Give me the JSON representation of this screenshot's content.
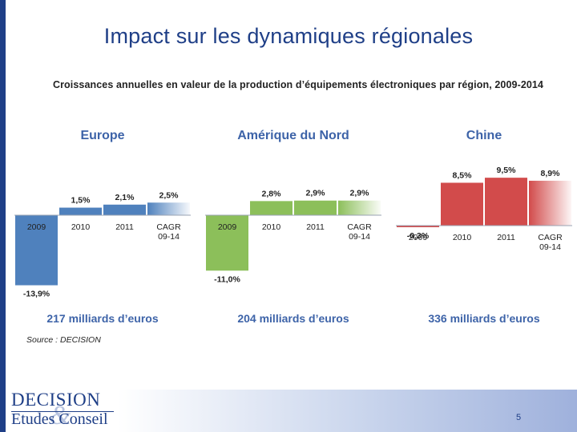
{
  "slide": {
    "title": "Impact sur les dynamiques régionales",
    "subtitle": "Croissances annuelles en valeur de la production d’équipements électroniques par région, 2009-2014",
    "source": "Source : DECISION",
    "page_number": "5",
    "logo": {
      "line1": "DECISION",
      "amp": "&",
      "line2": "Etudes Conseil"
    }
  },
  "chart_data": [
    {
      "type": "bar",
      "title": "Europe",
      "categories": [
        "2009",
        "2010",
        "2011",
        "CAGR\n09-14"
      ],
      "values": [
        -13.9,
        1.5,
        2.1,
        2.5
      ],
      "value_labels": [
        "-13,9%",
        "1,5%",
        "2,1%",
        "2,5%"
      ],
      "footer": "217 milliards d’euros",
      "color": "#4f81bd",
      "title_color": "#3d63a8"
    },
    {
      "type": "bar",
      "title": "Amérique du Nord",
      "categories": [
        "2009",
        "2010",
        "2011",
        "CAGR\n09-14"
      ],
      "values": [
        -11.0,
        2.8,
        2.9,
        2.9
      ],
      "value_labels": [
        "-11,0%",
        "2,8%",
        "2,9%",
        "2,9%"
      ],
      "footer": "204 milliards d’euros",
      "color": "#8cbf5a",
      "title_color": "#3d63a8"
    },
    {
      "type": "bar",
      "title": "Chine",
      "categories": [
        "2009",
        "2010",
        "2011",
        "CAGR\n09-14"
      ],
      "values": [
        -0.3,
        8.5,
        9.5,
        8.9
      ],
      "value_labels": [
        "-0,3%",
        "8,5%",
        "9,5%",
        "8,9%"
      ],
      "footer": "336 milliards d’euros",
      "color": "#d24b4b",
      "title_color": "#3d63a8"
    }
  ]
}
